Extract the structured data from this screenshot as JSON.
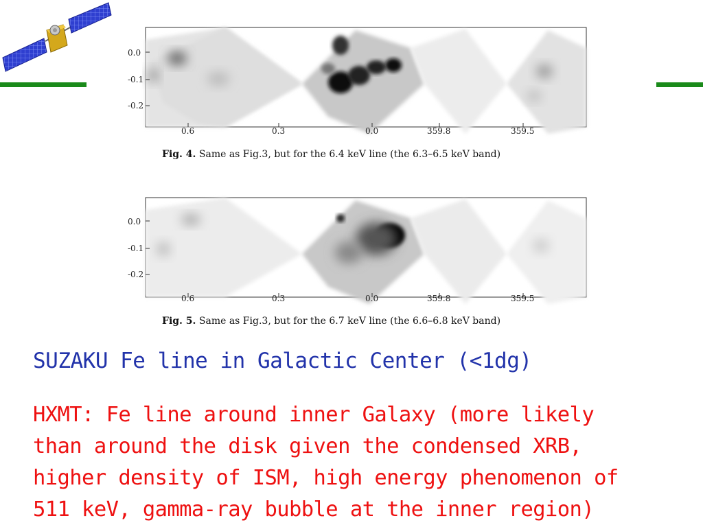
{
  "colors": {
    "green_bar": "#1a8a1a",
    "subtitle": "#2233aa",
    "body": "#ee1111"
  },
  "icons": {
    "logo": "satellite-icon"
  },
  "figure4": {
    "y_ticks": [
      "0.0",
      "-0.1",
      "-0.2"
    ],
    "x_ticks": [
      "0.6",
      "0.3",
      "0.0",
      "359.8",
      "359.5"
    ],
    "caption_label": "Fig. 4.",
    "caption_text": "Same as Fig.3, but for the 6.4 keV line (the 6.3–6.5 keV band)"
  },
  "figure5": {
    "y_ticks": [
      "0.0",
      "-0.1",
      "-0.2"
    ],
    "x_ticks": [
      "0.6",
      "0.3",
      "0.0",
      "359.8",
      "359.5"
    ],
    "caption_label": "Fig. 5.",
    "caption_text": "Same as Fig.3, but for the 6.7 keV line (the 6.6–6.8 keV band)"
  },
  "subtitle": "SUZAKU Fe line in Galactic Center (<1dg)",
  "body_lines": [
    "HXMT: Fe line around inner Galaxy (more likely",
    "than around the disk given the condensed XRB,",
    "higher density of ISM, high energy phenomenon of",
    "511 keV, gamma-ray bubble at the inner region)"
  ]
}
